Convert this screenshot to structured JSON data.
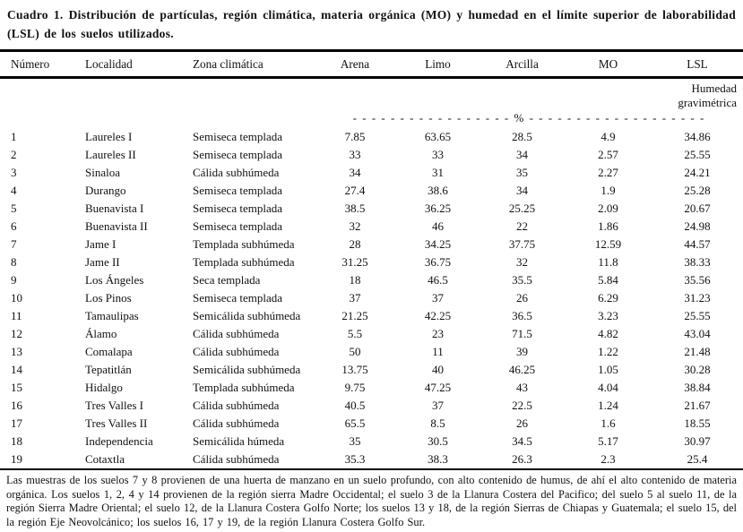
{
  "title": "Cuadro 1. Distribución de partículas, región climática, materia orgánica (MO) y humedad en el límite superior de laborabilidad (LSL) de los suelos utilizados.",
  "table": {
    "columns": [
      "Número",
      "Localidad",
      "Zona climática",
      "Arena",
      "Limo",
      "Arcilla",
      "MO",
      "LSL"
    ],
    "lsl_subheader": "Humedad gravimétrica",
    "units_row": "- - - - - - - - - - - - - - - - - % - - - - - - - - - - - - - - - - - - -",
    "rows": [
      {
        "numero": "1",
        "localidad": "Laureles I",
        "zona": "Semiseca templada",
        "arena": "7.85",
        "limo": "63.65",
        "arcilla": "28.5",
        "mo": "4.9",
        "lsl": "34.86"
      },
      {
        "numero": "2",
        "localidad": "Laureles II",
        "zona": "Semiseca templada",
        "arena": "33",
        "limo": "33",
        "arcilla": "34",
        "mo": "2.57",
        "lsl": "25.55"
      },
      {
        "numero": "3",
        "localidad": "Sinaloa",
        "zona": "Cálida subhúmeda",
        "arena": "34",
        "limo": "31",
        "arcilla": "35",
        "mo": "2.27",
        "lsl": "24.21"
      },
      {
        "numero": "4",
        "localidad": "Durango",
        "zona": "Semiseca templada",
        "arena": "27.4",
        "limo": "38.6",
        "arcilla": "34",
        "mo": "1.9",
        "lsl": "25.28"
      },
      {
        "numero": "5",
        "localidad": "Buenavista I",
        "zona": "Semiseca templada",
        "arena": "38.5",
        "limo": "36.25",
        "arcilla": "25.25",
        "mo": "2.09",
        "lsl": "20.67"
      },
      {
        "numero": "6",
        "localidad": "Buenavista II",
        "zona": "Semiseca templada",
        "arena": "32",
        "limo": "46",
        "arcilla": "22",
        "mo": "1.86",
        "lsl": "24.98"
      },
      {
        "numero": "7",
        "localidad": "Jame I",
        "zona": "Templada subhúmeda",
        "arena": "28",
        "limo": "34.25",
        "arcilla": "37.75",
        "mo": "12.59",
        "lsl": "44.57"
      },
      {
        "numero": "8",
        "localidad": "Jame II",
        "zona": "Templada subhúmeda",
        "arena": "31.25",
        "limo": "36.75",
        "arcilla": "32",
        "mo": "11.8",
        "lsl": "38.33"
      },
      {
        "numero": "9",
        "localidad": "Los Ángeles",
        "zona": "Seca templada",
        "arena": "18",
        "limo": "46.5",
        "arcilla": "35.5",
        "mo": "5.84",
        "lsl": "35.56"
      },
      {
        "numero": "10",
        "localidad": "Los Pinos",
        "zona": "Semiseca templada",
        "arena": "37",
        "limo": "37",
        "arcilla": "26",
        "mo": "6.29",
        "lsl": "31.23"
      },
      {
        "numero": "11",
        "localidad": "Tamaulipas",
        "zona": "Semicálida subhúmeda",
        "arena": "21.25",
        "limo": "42.25",
        "arcilla": "36.5",
        "mo": "3.23",
        "lsl": "25.55"
      },
      {
        "numero": "12",
        "localidad": "Álamo",
        "zona": "Cálida subhúmeda",
        "arena": "5.5",
        "limo": "23",
        "arcilla": "71.5",
        "mo": "4.82",
        "lsl": "43.04"
      },
      {
        "numero": "13",
        "localidad": "Comalapa",
        "zona": "Cálida subhúmeda",
        "arena": "50",
        "limo": "11",
        "arcilla": "39",
        "mo": "1.22",
        "lsl": "21.48"
      },
      {
        "numero": "14",
        "localidad": "Tepatitlán",
        "zona": "Semicálida subhúmeda",
        "arena": "13.75",
        "limo": "40",
        "arcilla": "46.25",
        "mo": "1.05",
        "lsl": "30.28"
      },
      {
        "numero": "15",
        "localidad": "Hidalgo",
        "zona": "Templada subhúmeda",
        "arena": "9.75",
        "limo": "47.25",
        "arcilla": "43",
        "mo": "4.04",
        "lsl": "38.84"
      },
      {
        "numero": "16",
        "localidad": "Tres Valles I",
        "zona": "Cálida subhúmeda",
        "arena": "40.5",
        "limo": "37",
        "arcilla": "22.5",
        "mo": "1.24",
        "lsl": "21.67"
      },
      {
        "numero": "17",
        "localidad": "Tres Valles II",
        "zona": "Cálida subhúmeda",
        "arena": "65.5",
        "limo": "8.5",
        "arcilla": "26",
        "mo": "1.6",
        "lsl": "18.55"
      },
      {
        "numero": "18",
        "localidad": "Independencia",
        "zona": "Semicálida húmeda",
        "arena": "35",
        "limo": "30.5",
        "arcilla": "34.5",
        "mo": "5.17",
        "lsl": "30.97"
      },
      {
        "numero": "19",
        "localidad": "Cotaxtla",
        "zona": "Cálida subhúmeda",
        "arena": "35.3",
        "limo": "38.3",
        "arcilla": "26.3",
        "mo": "2.3",
        "lsl": "25.4"
      }
    ]
  },
  "footnote": "Las muestras de los suelos 7 y 8 provienen de una huerta de manzano en un suelo profundo, con alto contenido de humus, de ahí el alto contenido de materia orgánica. Los suelos 1, 2, 4 y 14 provienen de la región sierra Madre Occidental; el suelo 3 de la Llanura Costera del Pacifico; del suelo 5 al suelo 11, de la región Sierra Madre Oriental;  el suelo 12, de la Llanura Costera Golfo Norte; los suelos 13 y 18, de la región Sierras de Chiapas y Guatemala; el suelo 15, del la región Eje Neovolcánico; los suelos 16, 17 y 19, de la región Llanura Costera Golfo Sur."
}
